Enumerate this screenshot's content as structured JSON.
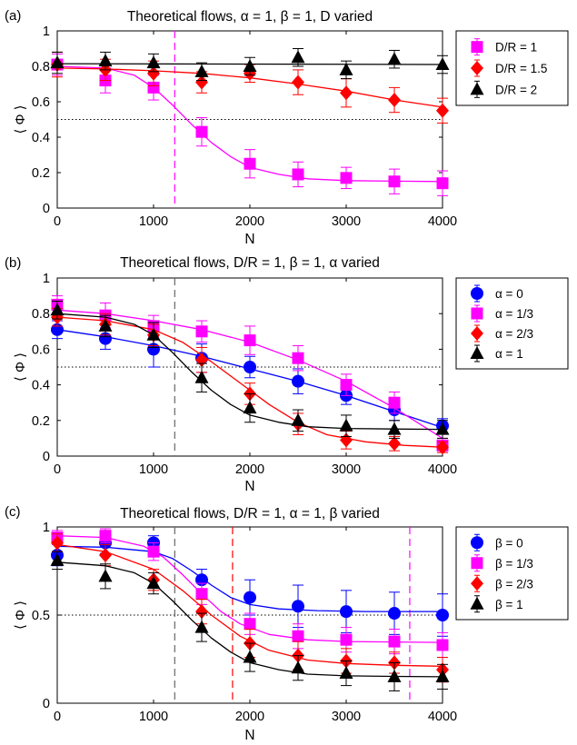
{
  "chart_data": [
    {
      "panel_label": "(a)",
      "type": "scatter",
      "title": "Theoretical flows, α = 1, β = 1, D varied",
      "xlabel": "N",
      "ylabel": "⟨ Φ ⟩",
      "xlim": [
        0,
        4000
      ],
      "ylim": [
        0,
        1
      ],
      "xticks": [
        "0",
        "1000",
        "2000",
        "3000",
        "4000"
      ],
      "yticks": [
        "0",
        "0.2",
        "0.4",
        "0.6",
        "0.8",
        "1"
      ],
      "threshold": 0.5,
      "vlines": [
        {
          "x": 1220,
          "color": "#ff00ff"
        }
      ],
      "legend_position": "top-right-outside",
      "series": [
        {
          "name": "D/R = 1",
          "color": "#ff00ff",
          "marker": "square",
          "x": [
            0,
            500,
            1000,
            1500,
            2000,
            2500,
            3000,
            3500,
            4000
          ],
          "y": [
            0.81,
            0.72,
            0.68,
            0.43,
            0.25,
            0.19,
            0.17,
            0.15,
            0.14
          ],
          "err": [
            0.06,
            0.07,
            0.07,
            0.08,
            0.08,
            0.07,
            0.06,
            0.07,
            0.07
          ],
          "fit": [
            [
              0,
              0.8
            ],
            [
              500,
              0.79
            ],
            [
              800,
              0.75
            ],
            [
              1000,
              0.68
            ],
            [
              1200,
              0.58
            ],
            [
              1400,
              0.47
            ],
            [
              1600,
              0.37
            ],
            [
              1800,
              0.29
            ],
            [
              2000,
              0.23
            ],
            [
              2300,
              0.19
            ],
            [
              2600,
              0.165
            ],
            [
              3000,
              0.155
            ],
            [
              3500,
              0.152
            ],
            [
              4000,
              0.15
            ]
          ]
        },
        {
          "name": "D/R = 1.5",
          "color": "#ff0000",
          "marker": "diamond",
          "x": [
            0,
            500,
            1000,
            1500,
            2000,
            2500,
            3000,
            3500,
            4000
          ],
          "y": [
            0.81,
            0.78,
            0.76,
            0.71,
            0.76,
            0.71,
            0.65,
            0.61,
            0.55
          ],
          "err": [
            0.07,
            0.06,
            0.07,
            0.06,
            0.05,
            0.07,
            0.08,
            0.07,
            0.07
          ],
          "fit": [
            [
              0,
              0.79
            ],
            [
              500,
              0.785
            ],
            [
              1000,
              0.775
            ],
            [
              1500,
              0.76
            ],
            [
              2000,
              0.735
            ],
            [
              2500,
              0.7
            ],
            [
              3000,
              0.66
            ],
            [
              3500,
              0.61
            ],
            [
              4000,
              0.57
            ]
          ]
        },
        {
          "name": "D/R = 2",
          "color": "#000000",
          "marker": "triangle",
          "x": [
            0,
            500,
            1000,
            1500,
            2000,
            2500,
            3000,
            3500,
            4000
          ],
          "y": [
            0.82,
            0.83,
            0.82,
            0.77,
            0.8,
            0.85,
            0.78,
            0.84,
            0.81
          ],
          "err": [
            0.06,
            0.05,
            0.05,
            0.05,
            0.05,
            0.05,
            0.05,
            0.05,
            0.05
          ],
          "fit": [
            [
              0,
              0.815
            ],
            [
              4000,
              0.81
            ]
          ]
        }
      ]
    },
    {
      "panel_label": "(b)",
      "type": "scatter",
      "title": "Theoretical flows, D/R = 1, β = 1, α varied",
      "xlabel": "N",
      "ylabel": "⟨ Φ ⟩",
      "xlim": [
        0,
        4000
      ],
      "ylim": [
        0,
        1
      ],
      "xticks": [
        "0",
        "1000",
        "2000",
        "3000",
        "4000"
      ],
      "yticks": [
        "0",
        "0.2",
        "0.4",
        "0.6",
        "0.8",
        "1"
      ],
      "threshold": 0.5,
      "vlines": [
        {
          "x": 1220,
          "color": "#666666"
        }
      ],
      "legend_position": "top-right-outside",
      "series": [
        {
          "name": "α = 0",
          "color": "#0000ff",
          "marker": "circle",
          "x": [
            0,
            500,
            1000,
            1500,
            2000,
            2500,
            3000,
            3500,
            4000
          ],
          "y": [
            0.71,
            0.66,
            0.6,
            0.55,
            0.5,
            0.42,
            0.34,
            0.26,
            0.17
          ],
          "err": [
            0.05,
            0.06,
            0.1,
            0.08,
            0.06,
            0.07,
            0.05,
            0.06,
            0.04
          ],
          "fit": [
            [
              0,
              0.71
            ],
            [
              500,
              0.67
            ],
            [
              1000,
              0.62
            ],
            [
              1500,
              0.56
            ],
            [
              2000,
              0.49
            ],
            [
              2500,
              0.42
            ],
            [
              3000,
              0.34
            ],
            [
              3500,
              0.25
            ],
            [
              4000,
              0.16
            ]
          ]
        },
        {
          "name": "α = 1/3",
          "color": "#ff00ff",
          "marker": "square",
          "x": [
            0,
            500,
            1000,
            1500,
            2000,
            2500,
            3000,
            3500,
            4000
          ],
          "y": [
            0.85,
            0.79,
            0.73,
            0.7,
            0.65,
            0.55,
            0.4,
            0.3,
            0.06
          ],
          "err": [
            0.05,
            0.07,
            0.06,
            0.06,
            0.08,
            0.07,
            0.06,
            0.06,
            0.04
          ],
          "fit": [
            [
              0,
              0.82
            ],
            [
              500,
              0.8
            ],
            [
              1000,
              0.76
            ],
            [
              1500,
              0.71
            ],
            [
              2000,
              0.64
            ],
            [
              2500,
              0.54
            ],
            [
              3000,
              0.42
            ],
            [
              3500,
              0.27
            ],
            [
              4000,
              0.1
            ]
          ]
        },
        {
          "name": "α = 2/3",
          "color": "#ff0000",
          "marker": "diamond",
          "x": [
            0,
            500,
            1000,
            1500,
            2000,
            2500,
            3000,
            3500,
            4000
          ],
          "y": [
            0.78,
            0.74,
            0.68,
            0.54,
            0.35,
            0.18,
            0.09,
            0.07,
            0.05
          ],
          "err": [
            0.05,
            0.06,
            0.06,
            0.07,
            0.06,
            0.06,
            0.05,
            0.04,
            0.03
          ],
          "fit": [
            [
              0,
              0.78
            ],
            [
              500,
              0.76
            ],
            [
              1000,
              0.71
            ],
            [
              1300,
              0.64
            ],
            [
              1600,
              0.53
            ],
            [
              1900,
              0.41
            ],
            [
              2200,
              0.29
            ],
            [
              2500,
              0.19
            ],
            [
              2800,
              0.12
            ],
            [
              3200,
              0.08
            ],
            [
              3600,
              0.06
            ],
            [
              4000,
              0.05
            ]
          ]
        },
        {
          "name": "α = 1",
          "color": "#000000",
          "marker": "triangle",
          "x": [
            0,
            500,
            1000,
            1500,
            2000,
            2500,
            3000,
            3500,
            4000
          ],
          "y": [
            0.82,
            0.73,
            0.68,
            0.44,
            0.27,
            0.2,
            0.17,
            0.15,
            0.15
          ],
          "err": [
            0.05,
            0.06,
            0.07,
            0.08,
            0.08,
            0.06,
            0.06,
            0.05,
            0.05
          ],
          "fit": [
            [
              0,
              0.8
            ],
            [
              500,
              0.78
            ],
            [
              800,
              0.74
            ],
            [
              1000,
              0.68
            ],
            [
              1200,
              0.58
            ],
            [
              1400,
              0.47
            ],
            [
              1600,
              0.37
            ],
            [
              1800,
              0.29
            ],
            [
              2000,
              0.23
            ],
            [
              2300,
              0.19
            ],
            [
              2600,
              0.165
            ],
            [
              3000,
              0.155
            ],
            [
              3500,
              0.152
            ],
            [
              4000,
              0.15
            ]
          ]
        }
      ]
    },
    {
      "panel_label": "(c)",
      "type": "scatter",
      "title": "Theoretical flows, D/R = 1, α = 1, β varied",
      "xlabel": "N",
      "ylabel": "⟨ Φ ⟩",
      "xlim": [
        0,
        4000
      ],
      "ylim": [
        0,
        1
      ],
      "xticks": [
        "0",
        "1000",
        "2000",
        "3000",
        "4000"
      ],
      "yticks": [
        "0",
        "0.5",
        "1"
      ],
      "threshold": 0.5,
      "vlines": [
        {
          "x": 1220,
          "color": "#666666"
        },
        {
          "x": 1820,
          "color": "#ff0000"
        },
        {
          "x": 3660,
          "color": "#ff00ff"
        }
      ],
      "legend_position": "top-right-outside",
      "series": [
        {
          "name": "β = 0",
          "color": "#0000ff",
          "marker": "circle",
          "x": [
            0,
            500,
            1000,
            1500,
            2000,
            2500,
            3000,
            3500,
            4000
          ],
          "y": [
            0.84,
            0.91,
            0.91,
            0.7,
            0.6,
            0.55,
            0.52,
            0.51,
            0.5
          ],
          "err": [
            0.06,
            0.06,
            0.04,
            0.06,
            0.1,
            0.12,
            0.12,
            0.12,
            0.12
          ],
          "fit": [
            [
              0,
              0.89
            ],
            [
              500,
              0.885
            ],
            [
              1000,
              0.86
            ],
            [
              1200,
              0.82
            ],
            [
              1400,
              0.75
            ],
            [
              1600,
              0.67
            ],
            [
              1800,
              0.6
            ],
            [
              2000,
              0.56
            ],
            [
              2300,
              0.535
            ],
            [
              2700,
              0.525
            ],
            [
              3200,
              0.52
            ],
            [
              4000,
              0.52
            ]
          ]
        },
        {
          "name": "β = 1/3",
          "color": "#ff00ff",
          "marker": "square",
          "x": [
            0,
            500,
            1000,
            1500,
            2000,
            2500,
            3000,
            3500,
            4000
          ],
          "y": [
            0.94,
            0.95,
            0.86,
            0.62,
            0.45,
            0.38,
            0.36,
            0.35,
            0.33
          ],
          "err": [
            0.04,
            0.04,
            0.05,
            0.06,
            0.06,
            0.07,
            0.07,
            0.07,
            0.07
          ],
          "fit": [
            [
              0,
              0.95
            ],
            [
              500,
              0.94
            ],
            [
              900,
              0.89
            ],
            [
              1100,
              0.83
            ],
            [
              1300,
              0.73
            ],
            [
              1500,
              0.62
            ],
            [
              1700,
              0.52
            ],
            [
              1900,
              0.45
            ],
            [
              2200,
              0.39
            ],
            [
              2600,
              0.36
            ],
            [
              3000,
              0.35
            ],
            [
              4000,
              0.345
            ]
          ]
        },
        {
          "name": "β = 2/3",
          "color": "#ff0000",
          "marker": "diamond",
          "x": [
            0,
            500,
            1000,
            1500,
            2000,
            2500,
            3000,
            3500,
            4000
          ],
          "y": [
            0.91,
            0.84,
            0.7,
            0.52,
            0.34,
            0.27,
            0.24,
            0.23,
            0.19
          ],
          "err": [
            0.05,
            0.06,
            0.06,
            0.07,
            0.08,
            0.08,
            0.07,
            0.06,
            0.07
          ],
          "fit": [
            [
              0,
              0.9
            ],
            [
              500,
              0.86
            ],
            [
              1000,
              0.76
            ],
            [
              1300,
              0.64
            ],
            [
              1600,
              0.5
            ],
            [
              1900,
              0.38
            ],
            [
              2200,
              0.3
            ],
            [
              2600,
              0.245
            ],
            [
              3000,
              0.225
            ],
            [
              3500,
              0.215
            ],
            [
              4000,
              0.21
            ]
          ]
        },
        {
          "name": "β = 1",
          "color": "#000000",
          "marker": "triangle",
          "x": [
            0,
            500,
            1000,
            1500,
            2000,
            2500,
            3000,
            3500,
            4000
          ],
          "y": [
            0.81,
            0.72,
            0.68,
            0.43,
            0.26,
            0.2,
            0.17,
            0.15,
            0.15
          ],
          "err": [
            0.05,
            0.07,
            0.06,
            0.08,
            0.08,
            0.07,
            0.07,
            0.08,
            0.07
          ],
          "fit": [
            [
              0,
              0.8
            ],
            [
              500,
              0.78
            ],
            [
              800,
              0.74
            ],
            [
              1000,
              0.68
            ],
            [
              1200,
              0.58
            ],
            [
              1400,
              0.47
            ],
            [
              1600,
              0.37
            ],
            [
              1800,
              0.29
            ],
            [
              2000,
              0.23
            ],
            [
              2300,
              0.19
            ],
            [
              2600,
              0.165
            ],
            [
              3000,
              0.155
            ],
            [
              3500,
              0.152
            ],
            [
              4000,
              0.15
            ]
          ]
        }
      ]
    }
  ]
}
